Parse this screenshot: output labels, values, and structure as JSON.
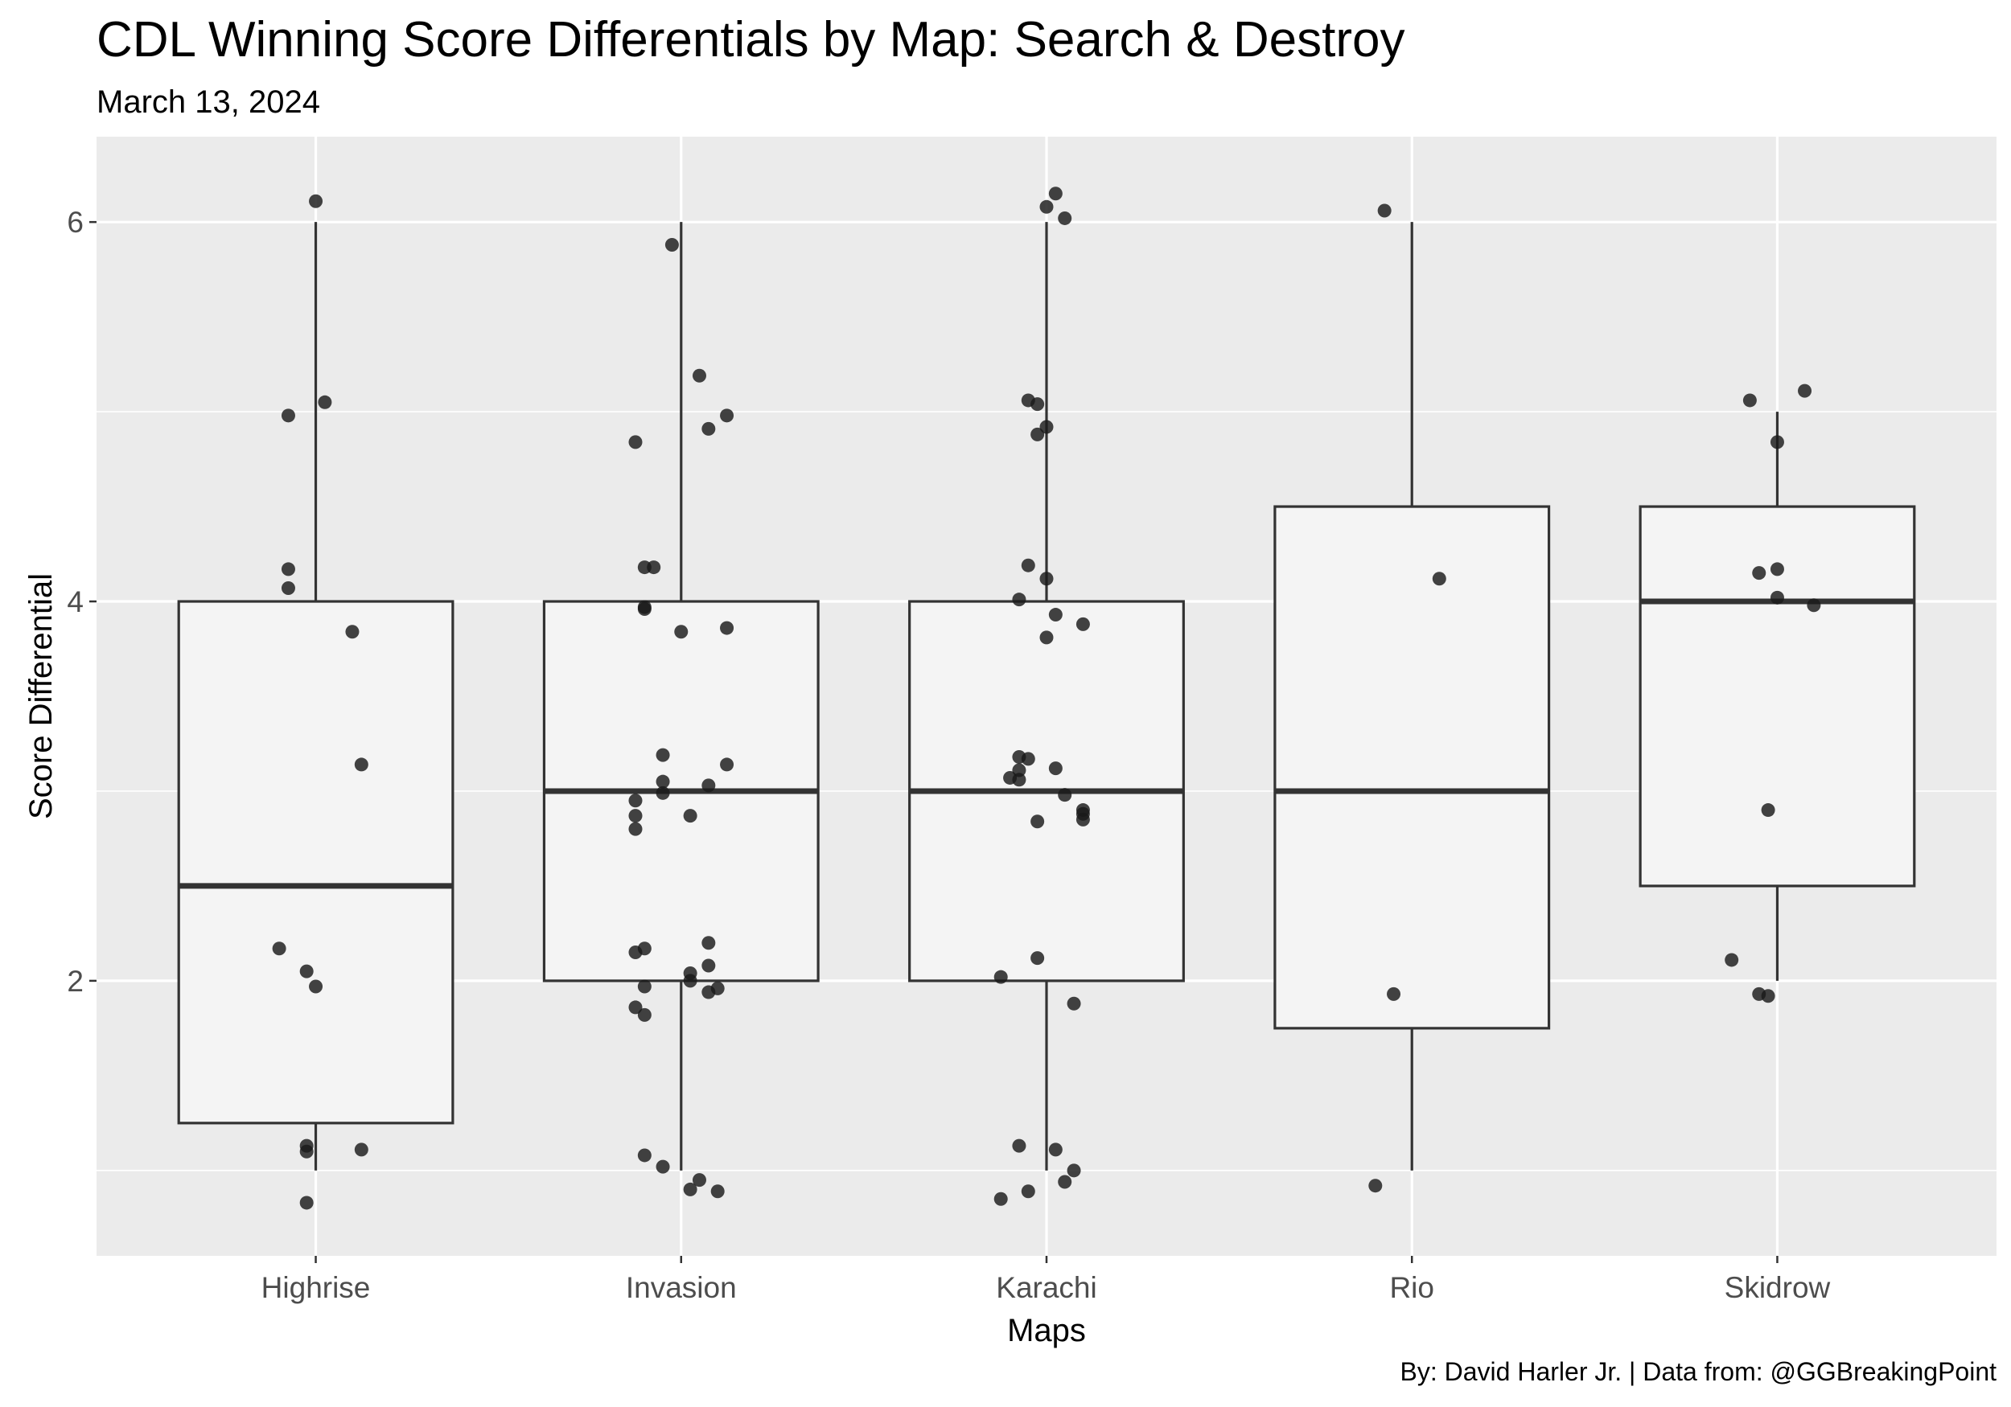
{
  "chart_data": {
    "type": "boxplot",
    "title": "CDL Winning Score Differentials by Map: Search & Destroy",
    "subtitle": "March 13, 2024",
    "caption": "By: David Harler Jr. | Data from: @GGBreakingPoint",
    "xlabel": "Maps",
    "ylabel": "Score Differential",
    "ylim": [
      0.55,
      6.45
    ],
    "y_ticks": [
      2,
      4,
      6
    ],
    "y_tick_labels": [
      "2",
      "4",
      "6"
    ],
    "y_minor_ticks": [
      1,
      3,
      5
    ],
    "categories": [
      "Highrise",
      "Invasion",
      "Karachi",
      "Rio",
      "Skidrow"
    ],
    "boxes": [
      {
        "category": "Highrise",
        "whisker_low": 1,
        "q1": 1.25,
        "median": 2.5,
        "q3": 4,
        "whisker_high": 6
      },
      {
        "category": "Invasion",
        "whisker_low": 1,
        "q1": 2,
        "median": 3,
        "q3": 4,
        "whisker_high": 6
      },
      {
        "category": "Karachi",
        "whisker_low": 1,
        "q1": 2,
        "median": 3,
        "q3": 4,
        "whisker_high": 6
      },
      {
        "category": "Rio",
        "whisker_low": 1,
        "q1": 1.75,
        "median": 3,
        "q3": 4.5,
        "whisker_high": 6
      },
      {
        "category": "Skidrow",
        "whisker_low": 2,
        "q1": 2.5,
        "median": 4,
        "q3": 4.5,
        "whisker_high": 5
      }
    ],
    "points": [
      {
        "category": "Highrise",
        "jitter": 0.0,
        "y": 6.11
      },
      {
        "category": "Highrise",
        "jitter": 0.01,
        "y": 5.05
      },
      {
        "category": "Highrise",
        "jitter": -0.03,
        "y": 4.98
      },
      {
        "category": "Highrise",
        "jitter": -0.03,
        "y": 4.17
      },
      {
        "category": "Highrise",
        "jitter": -0.03,
        "y": 4.07
      },
      {
        "category": "Highrise",
        "jitter": 0.04,
        "y": 3.84
      },
      {
        "category": "Highrise",
        "jitter": 0.05,
        "y": 3.14
      },
      {
        "category": "Highrise",
        "jitter": -0.04,
        "y": 2.17
      },
      {
        "category": "Highrise",
        "jitter": -0.01,
        "y": 2.05
      },
      {
        "category": "Highrise",
        "jitter": 0.0,
        "y": 1.97
      },
      {
        "category": "Highrise",
        "jitter": -0.01,
        "y": 1.13
      },
      {
        "category": "Highrise",
        "jitter": -0.01,
        "y": 1.1
      },
      {
        "category": "Highrise",
        "jitter": 0.05,
        "y": 1.11
      },
      {
        "category": "Highrise",
        "jitter": -0.01,
        "y": 0.83
      },
      {
        "category": "Invasion",
        "jitter": -0.01,
        "y": 5.88
      },
      {
        "category": "Invasion",
        "jitter": 0.02,
        "y": 5.19
      },
      {
        "category": "Invasion",
        "jitter": 0.05,
        "y": 4.98
      },
      {
        "category": "Invasion",
        "jitter": 0.03,
        "y": 4.91
      },
      {
        "category": "Invasion",
        "jitter": -0.05,
        "y": 4.84
      },
      {
        "category": "Invasion",
        "jitter": -0.04,
        "y": 4.18
      },
      {
        "category": "Invasion",
        "jitter": -0.03,
        "y": 4.18
      },
      {
        "category": "Invasion",
        "jitter": -0.04,
        "y": 3.96
      },
      {
        "category": "Invasion",
        "jitter": -0.04,
        "y": 3.97
      },
      {
        "category": "Invasion",
        "jitter": 0.05,
        "y": 3.86
      },
      {
        "category": "Invasion",
        "jitter": 0.0,
        "y": 3.84
      },
      {
        "category": "Invasion",
        "jitter": -0.02,
        "y": 3.19
      },
      {
        "category": "Invasion",
        "jitter": 0.05,
        "y": 3.14
      },
      {
        "category": "Invasion",
        "jitter": -0.02,
        "y": 3.05
      },
      {
        "category": "Invasion",
        "jitter": 0.03,
        "y": 3.03
      },
      {
        "category": "Invasion",
        "jitter": -0.02,
        "y": 2.99
      },
      {
        "category": "Invasion",
        "jitter": -0.05,
        "y": 2.95
      },
      {
        "category": "Invasion",
        "jitter": -0.05,
        "y": 2.87
      },
      {
        "category": "Invasion",
        "jitter": 0.01,
        "y": 2.87
      },
      {
        "category": "Invasion",
        "jitter": -0.05,
        "y": 2.8
      },
      {
        "category": "Invasion",
        "jitter": 0.03,
        "y": 2.2
      },
      {
        "category": "Invasion",
        "jitter": -0.04,
        "y": 2.17
      },
      {
        "category": "Invasion",
        "jitter": -0.05,
        "y": 2.15
      },
      {
        "category": "Invasion",
        "jitter": 0.03,
        "y": 2.08
      },
      {
        "category": "Invasion",
        "jitter": 0.01,
        "y": 2.04
      },
      {
        "category": "Invasion",
        "jitter": 0.01,
        "y": 2.0
      },
      {
        "category": "Invasion",
        "jitter": -0.04,
        "y": 1.97
      },
      {
        "category": "Invasion",
        "jitter": 0.04,
        "y": 1.96
      },
      {
        "category": "Invasion",
        "jitter": 0.03,
        "y": 1.94
      },
      {
        "category": "Invasion",
        "jitter": -0.05,
        "y": 1.86
      },
      {
        "category": "Invasion",
        "jitter": -0.04,
        "y": 1.82
      },
      {
        "category": "Invasion",
        "jitter": -0.04,
        "y": 1.08
      },
      {
        "category": "Invasion",
        "jitter": -0.02,
        "y": 1.02
      },
      {
        "category": "Invasion",
        "jitter": 0.02,
        "y": 0.95
      },
      {
        "category": "Invasion",
        "jitter": 0.01,
        "y": 0.9
      },
      {
        "category": "Invasion",
        "jitter": 0.04,
        "y": 0.89
      },
      {
        "category": "Karachi",
        "jitter": 0.01,
        "y": 6.15
      },
      {
        "category": "Karachi",
        "jitter": 0.0,
        "y": 6.08
      },
      {
        "category": "Karachi",
        "jitter": 0.02,
        "y": 6.02
      },
      {
        "category": "Karachi",
        "jitter": -0.02,
        "y": 5.06
      },
      {
        "category": "Karachi",
        "jitter": -0.01,
        "y": 5.04
      },
      {
        "category": "Karachi",
        "jitter": 0.0,
        "y": 4.92
      },
      {
        "category": "Karachi",
        "jitter": -0.01,
        "y": 4.88
      },
      {
        "category": "Karachi",
        "jitter": -0.02,
        "y": 4.19
      },
      {
        "category": "Karachi",
        "jitter": 0.0,
        "y": 4.12
      },
      {
        "category": "Karachi",
        "jitter": -0.03,
        "y": 4.01
      },
      {
        "category": "Karachi",
        "jitter": 0.01,
        "y": 3.93
      },
      {
        "category": "Karachi",
        "jitter": 0.04,
        "y": 3.88
      },
      {
        "category": "Karachi",
        "jitter": 0.0,
        "y": 3.81
      },
      {
        "category": "Karachi",
        "jitter": -0.03,
        "y": 3.18
      },
      {
        "category": "Karachi",
        "jitter": -0.02,
        "y": 3.17
      },
      {
        "category": "Karachi",
        "jitter": 0.01,
        "y": 3.12
      },
      {
        "category": "Karachi",
        "jitter": -0.03,
        "y": 3.11
      },
      {
        "category": "Karachi",
        "jitter": -0.04,
        "y": 3.07
      },
      {
        "category": "Karachi",
        "jitter": -0.03,
        "y": 3.06
      },
      {
        "category": "Karachi",
        "jitter": 0.02,
        "y": 2.98
      },
      {
        "category": "Karachi",
        "jitter": 0.04,
        "y": 2.9
      },
      {
        "category": "Karachi",
        "jitter": 0.04,
        "y": 2.88
      },
      {
        "category": "Karachi",
        "jitter": 0.04,
        "y": 2.85
      },
      {
        "category": "Karachi",
        "jitter": -0.01,
        "y": 2.84
      },
      {
        "category": "Karachi",
        "jitter": -0.01,
        "y": 2.12
      },
      {
        "category": "Karachi",
        "jitter": -0.05,
        "y": 2.02
      },
      {
        "category": "Karachi",
        "jitter": 0.03,
        "y": 1.88
      },
      {
        "category": "Karachi",
        "jitter": -0.03,
        "y": 1.13
      },
      {
        "category": "Karachi",
        "jitter": 0.01,
        "y": 1.11
      },
      {
        "category": "Karachi",
        "jitter": 0.03,
        "y": 1.0
      },
      {
        "category": "Karachi",
        "jitter": 0.02,
        "y": 0.94
      },
      {
        "category": "Karachi",
        "jitter": -0.02,
        "y": 0.89
      },
      {
        "category": "Karachi",
        "jitter": -0.05,
        "y": 0.85
      },
      {
        "category": "Rio",
        "jitter": -0.03,
        "y": 6.06
      },
      {
        "category": "Rio",
        "jitter": 0.03,
        "y": 4.12
      },
      {
        "category": "Rio",
        "jitter": -0.02,
        "y": 1.93
      },
      {
        "category": "Rio",
        "jitter": -0.04,
        "y": 0.92
      },
      {
        "category": "Skidrow",
        "jitter": 0.03,
        "y": 5.11
      },
      {
        "category": "Skidrow",
        "jitter": -0.03,
        "y": 5.06
      },
      {
        "category": "Skidrow",
        "jitter": 0.0,
        "y": 4.84
      },
      {
        "category": "Skidrow",
        "jitter": 0.0,
        "y": 4.17
      },
      {
        "category": "Skidrow",
        "jitter": -0.02,
        "y": 4.15
      },
      {
        "category": "Skidrow",
        "jitter": 0.0,
        "y": 4.02
      },
      {
        "category": "Skidrow",
        "jitter": 0.04,
        "y": 3.98
      },
      {
        "category": "Skidrow",
        "jitter": -0.01,
        "y": 2.9
      },
      {
        "category": "Skidrow",
        "jitter": -0.05,
        "y": 2.11
      },
      {
        "category": "Skidrow",
        "jitter": -0.02,
        "y": 1.93
      },
      {
        "category": "Skidrow",
        "jitter": -0.01,
        "y": 1.92
      }
    ],
    "colors": {
      "panel_background": "#ebebeb",
      "grid": "#ffffff",
      "box_fill": "#f4f4f4",
      "box_line": "#333333",
      "point": "#1a1a1a",
      "tick_label": "#4d4d4d"
    }
  }
}
